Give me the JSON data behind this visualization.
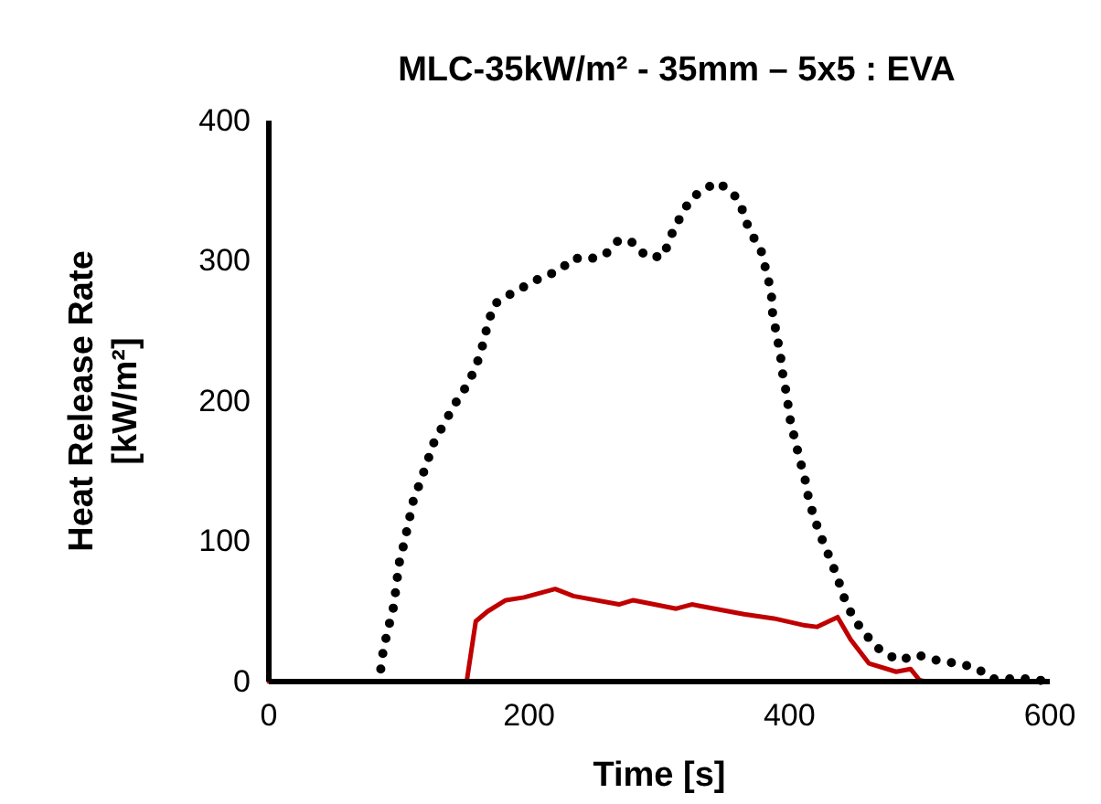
{
  "chart_data": {
    "type": "line",
    "title": "MLC-35kW/m² - 35mm – 5x5 : EVA",
    "xlabel": "Time [s]",
    "ylabel": "Heat Release Rate [kW/m²]",
    "xlim": [
      0,
      600
    ],
    "xticks": [
      0,
      200,
      400,
      600
    ],
    "ylim": [
      0,
      400
    ],
    "yticks": [
      0,
      100,
      200,
      300,
      400
    ],
    "grid": false,
    "marker": "none",
    "series": [
      {
        "color": "#000000",
        "line_style": "dotted",
        "x": [
          86,
          88,
          92,
          96,
          100,
          104,
          111,
          117,
          127,
          143,
          152,
          159,
          164,
          168,
          173,
          185,
          209,
          223,
          234,
          245,
          258,
          269,
          280,
          290,
          303,
          309,
          316,
          324,
          334,
          345,
          357,
          364,
          369,
          378,
          382,
          386,
          387,
          393,
          395,
          398,
          400,
          404,
          408,
          412,
          415,
          420,
          426,
          432,
          438,
          443,
          450,
          460,
          470,
          484,
          498,
          514,
          528,
          543,
          556,
          584,
          600
        ],
        "values": [
          9,
          23,
          39,
          54,
          84,
          99,
          129,
          144,
          171,
          198,
          211,
          224,
          239,
          254,
          269,
          276,
          288,
          293,
          302,
          301,
          304,
          315,
          313,
          303,
          303,
          318,
          331,
          344,
          351,
          356,
          348,
          336,
          322,
          308,
          293,
          278,
          263,
          233,
          218,
          204,
          189,
          173,
          158,
          144,
          129,
          114,
          99,
          86,
          71,
          57,
          44,
          32,
          22,
          15,
          19,
          15,
          13,
          10,
          2,
          2,
          0
        ]
      },
      {
        "color": "#c00000",
        "line_style": "solid",
        "x": [
          0,
          152,
          159,
          168,
          182,
          196,
          220,
          234,
          269,
          280,
          313,
          325,
          365,
          388,
          412,
          421,
          437,
          447,
          461,
          482,
          493,
          500,
          505,
          520
        ],
        "values": [
          0,
          0,
          43,
          50,
          58,
          60,
          66,
          61,
          55,
          58,
          52,
          55,
          48,
          45,
          40,
          39,
          46,
          30,
          13,
          7,
          9,
          1,
          0,
          0
        ]
      }
    ]
  }
}
